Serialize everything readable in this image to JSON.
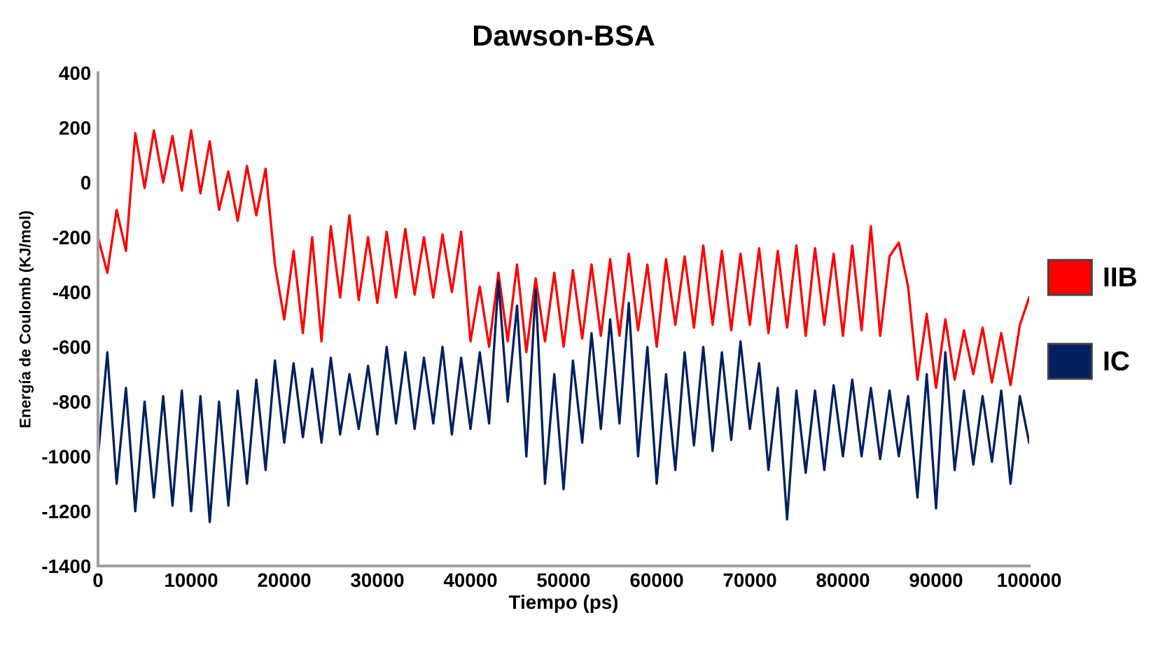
{
  "chart_data": {
    "type": "line",
    "title": "Dawson-BSA",
    "xlabel": "Tiempo (ps)",
    "ylabel": "Energía de Coulomb (KJ/mol)",
    "x": [
      0,
      1000,
      2000,
      3000,
      4000,
      5000,
      6000,
      7000,
      8000,
      9000,
      10000,
      11000,
      12000,
      13000,
      14000,
      15000,
      16000,
      17000,
      18000,
      19000,
      20000,
      21000,
      22000,
      23000,
      24000,
      25000,
      26000,
      27000,
      28000,
      29000,
      30000,
      31000,
      32000,
      33000,
      34000,
      35000,
      36000,
      37000,
      38000,
      39000,
      40000,
      41000,
      42000,
      43000,
      44000,
      45000,
      46000,
      47000,
      48000,
      49000,
      50000,
      51000,
      52000,
      53000,
      54000,
      55000,
      56000,
      57000,
      58000,
      59000,
      60000,
      61000,
      62000,
      63000,
      64000,
      65000,
      66000,
      67000,
      68000,
      69000,
      70000,
      71000,
      72000,
      73000,
      74000,
      75000,
      76000,
      77000,
      78000,
      79000,
      80000,
      81000,
      82000,
      83000,
      84000,
      85000,
      86000,
      87000,
      88000,
      89000,
      90000,
      91000,
      92000,
      93000,
      94000,
      95000,
      96000,
      97000,
      98000,
      99000,
      100000
    ],
    "series": [
      {
        "name": "IIB",
        "color": "#ff0000",
        "values": [
          -200,
          -330,
          -100,
          -250,
          180,
          -20,
          190,
          0,
          170,
          -30,
          190,
          -40,
          150,
          -100,
          40,
          -140,
          60,
          -120,
          50,
          -300,
          -500,
          -250,
          -550,
          -200,
          -580,
          -160,
          -420,
          -120,
          -430,
          -200,
          -440,
          -180,
          -420,
          -170,
          -410,
          -200,
          -420,
          -190,
          -400,
          -180,
          -580,
          -380,
          -600,
          -330,
          -580,
          -300,
          -620,
          -350,
          -580,
          -330,
          -600,
          -320,
          -570,
          -300,
          -560,
          -280,
          -560,
          -260,
          -540,
          -300,
          -600,
          -280,
          -520,
          -270,
          -530,
          -230,
          -520,
          -250,
          -540,
          -260,
          -520,
          -240,
          -550,
          -250,
          -530,
          -230,
          -560,
          -240,
          -520,
          -260,
          -560,
          -230,
          -540,
          -160,
          -560,
          -270,
          -220,
          -380,
          -720,
          -480,
          -750,
          -500,
          -720,
          -540,
          -700,
          -530,
          -730,
          -550,
          -740,
          -520,
          -420
        ]
      },
      {
        "name": "IC",
        "color": "#002060",
        "values": [
          -1000,
          -620,
          -1100,
          -750,
          -1200,
          -800,
          -1150,
          -780,
          -1180,
          -760,
          -1200,
          -780,
          -1240,
          -800,
          -1180,
          -760,
          -1100,
          -720,
          -1050,
          -650,
          -950,
          -660,
          -930,
          -680,
          -950,
          -640,
          -920,
          -700,
          -900,
          -670,
          -920,
          -600,
          -880,
          -620,
          -900,
          -640,
          -880,
          -600,
          -920,
          -640,
          -900,
          -620,
          -880,
          -360,
          -800,
          -450,
          -1000,
          -390,
          -1100,
          -700,
          -1120,
          -650,
          -950,
          -550,
          -900,
          -500,
          -880,
          -440,
          -1000,
          -600,
          -1100,
          -700,
          -1050,
          -620,
          -960,
          -600,
          -980,
          -620,
          -940,
          -580,
          -900,
          -660,
          -1050,
          -750,
          -1230,
          -760,
          -1060,
          -760,
          -1050,
          -740,
          -1000,
          -720,
          -1000,
          -750,
          -1010,
          -760,
          -1000,
          -780,
          -1150,
          -700,
          -1190,
          -620,
          -1050,
          -760,
          -1030,
          -780,
          -1020,
          -760,
          -1100,
          -780,
          -950
        ]
      }
    ],
    "xlim": [
      0,
      100000
    ],
    "xticks": [
      0,
      10000,
      20000,
      30000,
      40000,
      50000,
      60000,
      70000,
      80000,
      90000,
      100000
    ],
    "ylim": [
      -1400,
      400
    ],
    "yticks": [
      -1400,
      -1200,
      -1000,
      -800,
      -600,
      -400,
      -200,
      0,
      200,
      400
    ],
    "grid": false,
    "legend": "right",
    "line_style": "solid",
    "marker": "none"
  }
}
